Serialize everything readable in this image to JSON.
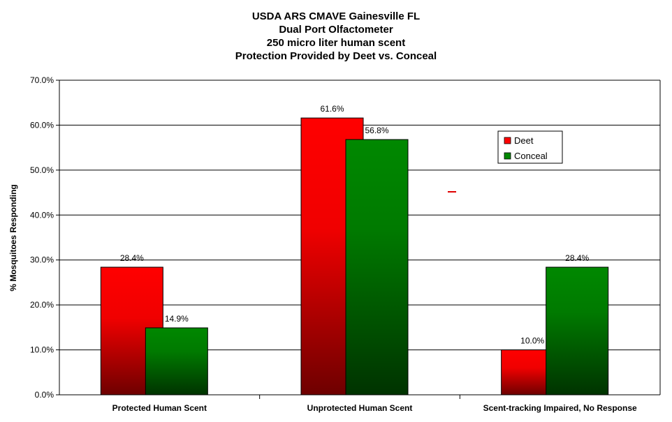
{
  "chart_data": {
    "type": "bar",
    "title_lines": [
      "USDA ARS CMAVE Gainesville FL",
      "Dual Port Olfactometer",
      "250 micro liter human scent",
      "Protection Provided by Deet vs. Conceal"
    ],
    "xlabel": "",
    "ylabel": "% Mosquitoes Responding",
    "categories": [
      "Protected Human Scent",
      "Unprotected Human Scent",
      "Scent-tracking Impaired, No Response"
    ],
    "series": [
      {
        "name": "Deet",
        "values": [
          28.4,
          61.6,
          10.0
        ],
        "labels": [
          "28.4%",
          "61.6%",
          "10.0%"
        ]
      },
      {
        "name": "Conceal",
        "values": [
          14.9,
          56.8,
          28.4
        ],
        "labels": [
          "14.9%",
          "56.8%",
          "28.4%"
        ]
      }
    ],
    "ylim": [
      0,
      70
    ],
    "yticks": [
      0,
      10,
      20,
      30,
      40,
      50,
      60,
      70
    ],
    "ytick_labels": [
      "0.0%",
      "10.0%",
      "20.0%",
      "30.0%",
      "40.0%",
      "50.0%",
      "60.0%",
      "70.0%"
    ],
    "grid": true,
    "legend_position": "upper-right"
  },
  "colors": {
    "deet_top": "#ff0000",
    "deet_bottom": "#6e0000",
    "conceal_top": "#008800",
    "conceal_bottom": "#003300",
    "axis": "#000000",
    "grid": "#000000"
  }
}
